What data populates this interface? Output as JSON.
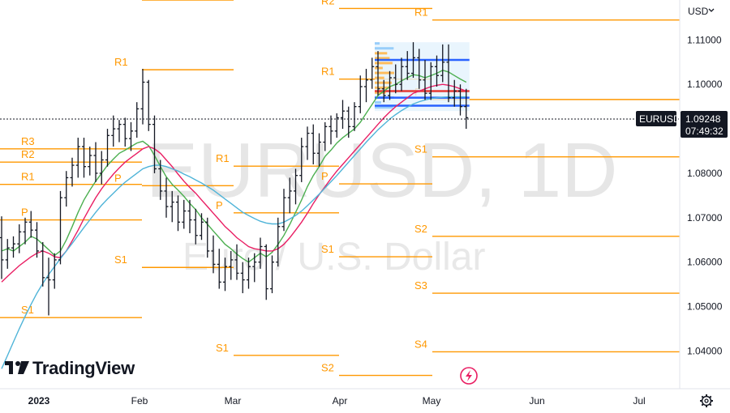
{
  "chart_data": {
    "type": "ohlc",
    "symbol": "EURUSD",
    "watermark_title": "EURUSD, 1D",
    "watermark_subtitle": "Euro / U.S. Dollar",
    "currency": "USD",
    "last_price": "1.09248",
    "countdown": "07:49:32",
    "brand": "TradingView",
    "x_ticks": [
      "2023",
      "Feb",
      "Mar",
      "Apr",
      "May",
      "Jun",
      "Jul"
    ],
    "y_ticks": [
      "1.04000",
      "1.05000",
      "1.06000",
      "1.07000",
      "1.08000",
      "1.09000",
      "1.10000",
      "1.11000"
    ],
    "ylim": [
      1.0315,
      1.119
    ],
    "pivot_levels": [
      {
        "period": "Jan",
        "R3": 1.0855,
        "R2": 1.0825,
        "R1": 1.0775,
        "P": 1.0695,
        "S1": 1.0475
      },
      {
        "period": "Feb",
        "R2": 1.119,
        "R1": 1.1033,
        "P": 1.0772,
        "S1": 1.0588
      },
      {
        "period": "Mar",
        "R1": 1.0816,
        "P": 1.0711,
        "S1": 1.039
      },
      {
        "period": "Apr",
        "R2": 1.1171,
        "R1": 1.1012,
        "P": 1.0776,
        "S1": 1.0612,
        "S2": 1.0345
      },
      {
        "period": "May",
        "R1": 1.1145,
        "P": 1.0966,
        "S1": 1.0837,
        "S2": 1.0658,
        "S3": 1.053,
        "S4": 1.0398
      }
    ],
    "candles": [
      [
        1.0655,
        1.0703,
        1.0562,
        1.0605
      ],
      [
        1.0605,
        1.0652,
        1.0585,
        1.0632
      ],
      [
        1.0632,
        1.0658,
        1.061,
        1.0641
      ],
      [
        1.0641,
        1.0685,
        1.062,
        1.0668
      ],
      [
        1.0668,
        1.07,
        1.064,
        1.069
      ],
      [
        1.069,
        1.0715,
        1.0655,
        1.0672
      ],
      [
        1.0672,
        1.069,
        1.061,
        1.0625
      ],
      [
        1.0625,
        1.0645,
        1.0545,
        1.0565
      ],
      [
        1.0565,
        1.061,
        1.048,
        1.056
      ],
      [
        1.056,
        1.062,
        1.054,
        1.0605
      ],
      [
        1.0605,
        1.076,
        1.0595,
        1.0745
      ],
      [
        1.0745,
        1.0805,
        1.0725,
        1.079
      ],
      [
        1.079,
        1.0835,
        1.077,
        1.0818
      ],
      [
        1.0818,
        1.088,
        1.079,
        1.086
      ],
      [
        1.086,
        1.088,
        1.079,
        1.0815
      ],
      [
        1.0815,
        1.086,
        1.0795,
        1.084
      ],
      [
        1.084,
        1.087,
        1.078,
        1.08
      ],
      [
        1.08,
        1.085,
        1.0775,
        1.083
      ],
      [
        1.083,
        1.09,
        1.0815,
        1.0885
      ],
      [
        1.0885,
        1.093,
        1.086,
        1.09
      ],
      [
        1.09,
        1.092,
        1.087,
        1.091
      ],
      [
        1.091,
        1.0925,
        1.086,
        1.0878
      ],
      [
        1.0878,
        1.0915,
        1.085,
        1.0895
      ],
      [
        1.0895,
        1.096,
        1.088,
        1.0945
      ],
      [
        1.0945,
        1.1035,
        1.091,
        1.1005
      ],
      [
        1.1005,
        1.101,
        1.0895,
        1.091
      ],
      [
        1.091,
        1.093,
        1.08,
        1.081
      ],
      [
        1.081,
        1.083,
        1.074,
        1.076
      ],
      [
        1.076,
        1.079,
        1.07,
        1.0725
      ],
      [
        1.0725,
        1.076,
        1.069,
        1.0735
      ],
      [
        1.0735,
        1.075,
        1.067,
        1.069
      ],
      [
        1.069,
        1.074,
        1.0675,
        1.0715
      ],
      [
        1.0715,
        1.074,
        1.0665,
        1.0695
      ],
      [
        1.0695,
        1.072,
        1.064,
        1.066
      ],
      [
        1.066,
        1.071,
        1.065,
        1.069
      ],
      [
        1.069,
        1.07,
        1.061,
        1.0625
      ],
      [
        1.0625,
        1.066,
        1.0575,
        1.0595
      ],
      [
        1.0595,
        1.063,
        1.054,
        1.0555
      ],
      [
        1.0555,
        1.061,
        1.0535,
        1.059
      ],
      [
        1.059,
        1.0625,
        1.056,
        1.0605
      ],
      [
        1.0605,
        1.064,
        1.056,
        1.0575
      ],
      [
        1.0575,
        1.06,
        1.053,
        1.056
      ],
      [
        1.056,
        1.061,
        1.054,
        1.059
      ],
      [
        1.059,
        1.062,
        1.0555,
        1.06
      ],
      [
        1.06,
        1.0655,
        1.0585,
        1.0635
      ],
      [
        1.0635,
        1.064,
        1.0515,
        1.054
      ],
      [
        1.054,
        1.0615,
        1.053,
        1.06
      ],
      [
        1.06,
        1.07,
        1.059,
        1.068
      ],
      [
        1.068,
        1.0765,
        1.067,
        1.0745
      ],
      [
        1.0745,
        1.079,
        1.071,
        1.076
      ],
      [
        1.076,
        1.081,
        1.073,
        1.0795
      ],
      [
        1.0795,
        1.088,
        1.078,
        1.086
      ],
      [
        1.086,
        1.0905,
        1.083,
        1.089
      ],
      [
        1.089,
        1.091,
        1.082,
        1.0845
      ],
      [
        1.0845,
        1.089,
        1.0815,
        1.087
      ],
      [
        1.087,
        1.0915,
        1.085,
        1.0905
      ],
      [
        1.0905,
        1.093,
        1.0865,
        1.0895
      ],
      [
        1.0895,
        1.0935,
        1.088,
        1.0925
      ],
      [
        1.0925,
        1.0965,
        1.09,
        1.094
      ],
      [
        1.094,
        1.095,
        1.088,
        1.0905
      ],
      [
        1.0905,
        1.096,
        1.0895,
        1.095
      ],
      [
        1.095,
        1.102,
        1.0935,
        1.0995
      ],
      [
        1.0995,
        1.1035,
        1.096,
        1.101
      ],
      [
        1.101,
        1.106,
        1.099,
        1.104
      ],
      [
        1.104,
        1.1075,
        1.0975,
        1.099
      ],
      [
        1.099,
        1.101,
        1.096,
        1.0975
      ],
      [
        1.0975,
        1.103,
        1.0965,
        1.1015
      ],
      [
        1.1015,
        1.1045,
        1.098,
        1.1
      ],
      [
        1.1,
        1.106,
        1.0985,
        1.104
      ],
      [
        1.104,
        1.1075,
        1.101,
        1.1025
      ],
      [
        1.1025,
        1.1095,
        1.1015,
        1.106
      ],
      [
        1.106,
        1.108,
        1.099,
        1.101
      ],
      [
        1.101,
        1.1055,
        1.0965,
        1.098
      ],
      [
        1.098,
        1.105,
        1.0965,
        1.104
      ],
      [
        1.104,
        1.1065,
        1.0995,
        1.102
      ],
      [
        1.102,
        1.109,
        1.1005,
        1.105
      ],
      [
        1.105,
        1.109,
        1.096,
        1.097
      ],
      [
        1.097,
        1.101,
        1.095,
        1.0985
      ],
      [
        1.0985,
        1.1,
        1.093,
        1.095
      ],
      [
        1.095,
        1.099,
        1.09,
        1.0925
      ]
    ],
    "moving_averages": [
      {
        "color": "#4caf50",
        "values": [
          1.0625,
          1.063,
          1.0625,
          1.0635,
          1.0645,
          1.0658,
          1.0652,
          1.064,
          1.0628,
          1.0615,
          1.0625,
          1.065,
          1.068,
          1.0712,
          1.074,
          1.0762,
          1.0782,
          1.08,
          1.0818,
          1.0832,
          1.0845,
          1.0852,
          1.086,
          1.0868,
          1.0872,
          1.0862,
          1.084,
          1.0815,
          1.0792,
          1.0775,
          1.0762,
          1.0748,
          1.0732,
          1.0718,
          1.07,
          1.0685,
          1.067,
          1.0655,
          1.064,
          1.063,
          1.0618,
          1.0608,
          1.06,
          1.061,
          1.062,
          1.0612,
          1.0622,
          1.064,
          1.066,
          1.0685,
          1.0712,
          1.074,
          1.077,
          1.0795,
          1.0815,
          1.0838,
          1.0852,
          1.0868,
          1.088,
          1.089,
          1.09,
          1.0915,
          1.0935,
          1.0955,
          1.0975,
          1.0985,
          1.0995,
          1.1,
          1.1008,
          1.1015,
          1.1022,
          1.102,
          1.1015,
          1.102,
          1.1025,
          1.1032,
          1.1028,
          1.102,
          1.1012,
          1.1005
        ]
      },
      {
        "color": "#e91e63",
        "values": [
          1.0555,
          1.0568,
          1.058,
          1.0592,
          1.0602,
          1.0612,
          1.062,
          1.0625,
          1.062,
          1.0612,
          1.061,
          1.0625,
          1.0648,
          1.0672,
          1.0698,
          1.0722,
          1.0745,
          1.0765,
          1.0782,
          1.0798,
          1.0812,
          1.0825,
          1.0835,
          1.0845,
          1.0855,
          1.086,
          1.0855,
          1.0845,
          1.083,
          1.0815,
          1.0798,
          1.0782,
          1.0768,
          1.0755,
          1.074,
          1.0725,
          1.071,
          1.0695,
          1.068,
          1.0668,
          1.0655,
          1.0645,
          1.0635,
          1.063,
          1.0628,
          1.0625,
          1.0625,
          1.063,
          1.064,
          1.0655,
          1.0672,
          1.069,
          1.071,
          1.0732,
          1.0752,
          1.077,
          1.0788,
          1.0805,
          1.082,
          1.0835,
          1.085,
          1.0865,
          1.088,
          1.0895,
          1.091,
          1.0925,
          1.0938,
          1.095,
          1.096,
          1.097,
          1.098,
          1.0985,
          1.099,
          1.0995,
          1.0998,
          1.1,
          1.0998,
          1.0995,
          1.099,
          1.0985
        ]
      },
      {
        "color": "#4fb4d8",
        "values": [
          1.036,
          1.039,
          1.042,
          1.045,
          1.0478,
          1.0505,
          1.053,
          1.0552,
          1.0572,
          1.059,
          1.0608,
          1.0625,
          1.0642,
          1.066,
          1.0678,
          1.0695,
          1.0712,
          1.0728,
          1.0742,
          1.0755,
          1.0768,
          1.078,
          1.079,
          1.08,
          1.081,
          1.0815,
          1.0818,
          1.0818,
          1.0815,
          1.081,
          1.0805,
          1.0798,
          1.0792,
          1.0785,
          1.0778,
          1.077,
          1.0762,
          1.0752,
          1.0742,
          1.0732,
          1.0722,
          1.0712,
          1.0705,
          1.0698,
          1.0692,
          1.0688,
          1.0686,
          1.0686,
          1.069,
          1.0697,
          1.0705,
          1.0715,
          1.0727,
          1.074,
          1.0753,
          1.0767,
          1.0781,
          1.0795,
          1.081,
          1.0825,
          1.084,
          1.0855,
          1.087,
          1.0884,
          1.0898,
          1.091,
          1.0922,
          1.0932,
          1.0941,
          1.0949,
          1.0956,
          1.0961,
          1.0965,
          1.0968,
          1.097,
          1.0971,
          1.0972,
          1.0972,
          1.0972,
          1.0972
        ]
      }
    ],
    "volume_profile_box": {
      "x_start_index": 64,
      "x_end_index": 79,
      "price_top": 1.1095,
      "price_bottom": 1.094
    },
    "profile_lines": [
      {
        "color": "#2962ff",
        "price": 1.1055
      },
      {
        "color": "#e53935",
        "price": 1.0985
      },
      {
        "color": "#2962ff",
        "price": 1.097
      },
      {
        "color": "#2962ff",
        "price": 1.0952
      }
    ]
  },
  "icons": {
    "settings": "gear-icon",
    "lightning": "lightning-icon",
    "logo": "tradingview-logo-icon",
    "dropdown": "chevron-down-icon"
  }
}
